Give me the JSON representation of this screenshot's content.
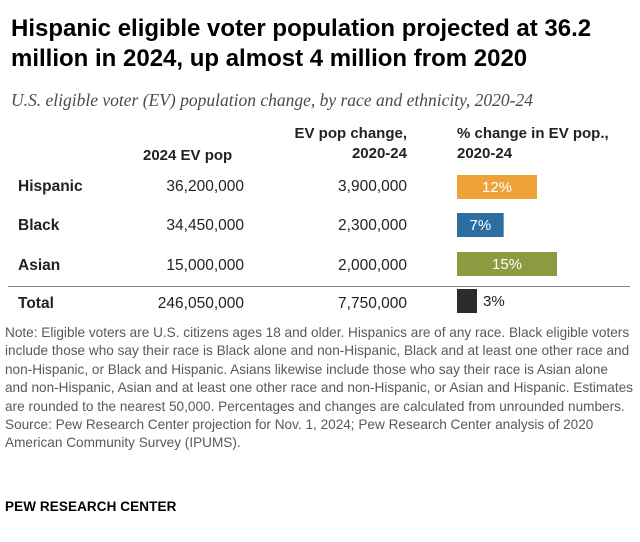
{
  "title": "Hispanic eligible voter population projected at 36.2 million in 2024, up almost 4 million from 2020",
  "subtitle": "U.S. eligible voter (EV) population change, by race and ethnicity, 2020-24",
  "columns": {
    "pop": "2024 EV pop",
    "change_line1": "EV pop change,",
    "change_line2": "2020-24",
    "pct_line1": "% change in EV pop.,",
    "pct_line2": "2020-24"
  },
  "rows": [
    {
      "label": "Hispanic",
      "pop": "36,200,000",
      "change": "3,900,000",
      "pct_label": "12%"
    },
    {
      "label": "Black",
      "pop": "34,450,000",
      "change": "2,300,000",
      "pct_label": "7%"
    },
    {
      "label": "Asian",
      "pop": "15,000,000",
      "change": "2,000,000",
      "pct_label": "15%"
    },
    {
      "label": "Total",
      "pop": "246,050,000",
      "change": "7,750,000",
      "pct_label": "3%"
    }
  ],
  "colors": {
    "Hispanic": "#EDA33A",
    "Black": "#2C6E9F",
    "Asian": "#8C9A40",
    "Total": "#2B2B2B"
  },
  "chart_data": {
    "type": "bar",
    "categories": [
      "Hispanic",
      "Black",
      "Asian",
      "Total"
    ],
    "values": [
      12,
      7,
      15,
      3
    ],
    "title": "Hispanic eligible voter population projected at 36.2 million in 2024, up almost 4 million from 2020",
    "ylabel": "% change in EV pop., 2020-24",
    "ylim": [
      0,
      15
    ],
    "grid": false,
    "orientation": "horizontal"
  },
  "note": "Note: Eligible voters are U.S. citizens ages 18 and older. Hispanics are of any race. Black eligible voters include those who say their race is Black alone and non-Hispanic, Black and at least one other race and non-Hispanic, or Black and Hispanic. Asians likewise include those who say their race is Asian alone and non-Hispanic, Asian and at least one other race and non-Hispanic, or Asian and Hispanic. Estimates are rounded to the nearest 50,000. Percentages and changes are calculated from unrounded numbers.",
  "source": "Source: Pew Research Center projection for Nov. 1, 2024; Pew Research Center analysis of 2020 American Community Survey (IPUMS).",
  "footer": "PEW RESEARCH CENTER"
}
